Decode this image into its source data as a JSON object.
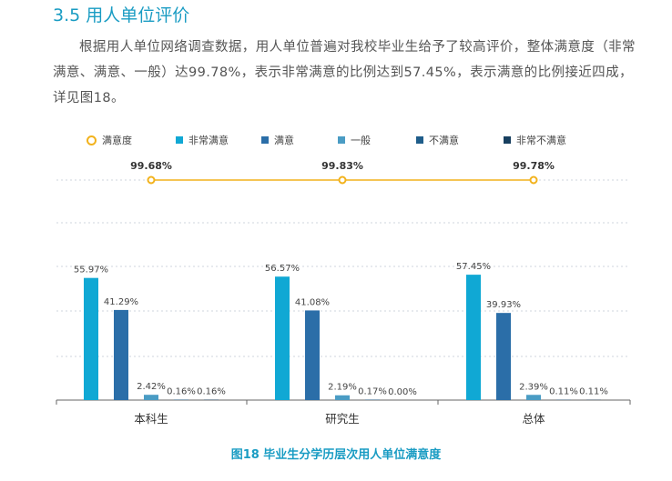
{
  "section": {
    "heading": "3.5  用人单位评价",
    "paragraph": "根据用人单位网络调查数据，用人单位普遍对我校毕业生给予了较高评价，整体满意度（非常满意、满意、一般）达99.78%，表示非常满意的比例达到57.45%，表示满意的比例接近四成，详见图18。"
  },
  "legend": [
    {
      "label": "满意度",
      "marker": "circle",
      "color": "#f2b21c"
    },
    {
      "label": "非常满意",
      "marker": "square",
      "color": "#10a8d4"
    },
    {
      "label": "满意",
      "marker": "square",
      "color": "#2b6ea8"
    },
    {
      "label": "一般",
      "marker": "square",
      "color": "#4a9cc4"
    },
    {
      "label": "不满意",
      "marker": "square",
      "color": "#1f5d8a"
    },
    {
      "label": "非常不满意",
      "marker": "square",
      "color": "#173f5f"
    }
  ],
  "chart_data": {
    "type": "bar",
    "categories": [
      "本科生",
      "研究生",
      "总体"
    ],
    "series": [
      {
        "name": "非常满意",
        "values": [
          55.97,
          56.57,
          57.45
        ],
        "labels": [
          "55.97%",
          "56.57%",
          "57.45%"
        ],
        "color": "#10a8d4"
      },
      {
        "name": "满意",
        "values": [
          41.29,
          41.08,
          39.93
        ],
        "labels": [
          "41.29%",
          "41.08%",
          "39.93%"
        ],
        "color": "#2b6ea8"
      },
      {
        "name": "一般",
        "values": [
          2.42,
          2.19,
          2.39
        ],
        "labels": [
          "2.42%",
          "2.19%",
          "2.39%"
        ],
        "color": "#4a9cc4"
      },
      {
        "name": "不满意",
        "values": [
          0.16,
          0.17,
          0.11
        ],
        "labels": [
          "0.16%",
          "0.17%",
          "0.11%"
        ],
        "color": "#1f5d8a"
      },
      {
        "name": "非常不满意",
        "values": [
          0.16,
          0.0,
          0.11
        ],
        "labels": [
          "0.16%",
          "0.00%",
          "0.11%"
        ],
        "color": "#173f5f"
      }
    ],
    "line_series": {
      "name": "满意度",
      "values": [
        99.68,
        99.83,
        99.78
      ],
      "labels": [
        "99.68%",
        "99.83%",
        "99.78%"
      ],
      "color": "#f2b21c"
    },
    "grid": true,
    "legend_position": "top"
  },
  "caption": "图18  毕业生分学历层次用人单位满意度"
}
